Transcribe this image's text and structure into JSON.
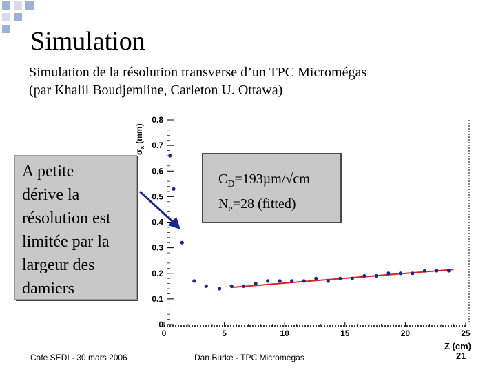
{
  "slide": {
    "title": "Simulation",
    "subtitle_line1": "Simulation de la résolution transverse d’un TPC Micromégas",
    "subtitle_line2": "(par Khalil Boudjemline, Carleton U. Ottawa)",
    "note_lines": [
      "A petite",
      "dérive la",
      "résolution est",
      "limitée par la",
      "largeur des",
      "damiers"
    ],
    "fit": {
      "cd_base": "C",
      "cd_sub": "D",
      "cd_value": "=193µm/√cm",
      "ne_base": "N",
      "ne_sub": "e",
      "ne_value": "=28 (fitted)"
    },
    "footer_left": "Cafe SEDI - 30 mars 2006",
    "footer_center": "Dan Burke - TPC Micromegas",
    "page_number": "21"
  },
  "colors": {
    "points": "#1a2a8c",
    "fit_line": "#dd2222",
    "arrow": "#1a2a8c",
    "box_fill": "#c8c8c8",
    "deco_square": "#9fb0d6"
  },
  "chart_data": {
    "type": "scatter",
    "xlabel": "Z (cm)",
    "ylabel_base": "σ",
    "ylabel_sub": "x",
    "ylabel_unit": "(mm)",
    "xlim": [
      0,
      25
    ],
    "ylim": [
      0,
      0.8
    ],
    "xticks": [
      "0",
      "5",
      "10",
      "15",
      "20",
      "25"
    ],
    "yticks": [
      "0",
      "0.1",
      "0.2",
      "0.3",
      "0.4",
      "0.5",
      "0.6",
      "0.7",
      "0.8"
    ],
    "grid": false,
    "series": [
      {
        "points": [
          [
            0.5,
            0.66
          ],
          [
            0.8,
            0.53
          ],
          [
            1.5,
            0.32
          ],
          [
            2.5,
            0.17
          ],
          [
            3.5,
            0.15
          ],
          [
            4.6,
            0.14
          ],
          [
            5.6,
            0.15
          ],
          [
            6.6,
            0.15
          ],
          [
            7.6,
            0.16
          ],
          [
            8.6,
            0.17
          ],
          [
            9.6,
            0.17
          ],
          [
            10.6,
            0.17
          ],
          [
            11.6,
            0.17
          ],
          [
            12.6,
            0.18
          ],
          [
            13.6,
            0.17
          ],
          [
            14.6,
            0.18
          ],
          [
            15.6,
            0.18
          ],
          [
            16.6,
            0.19
          ],
          [
            17.6,
            0.19
          ],
          [
            18.6,
            0.2
          ],
          [
            19.6,
            0.2
          ],
          [
            20.6,
            0.2
          ],
          [
            21.6,
            0.21
          ],
          [
            22.6,
            0.21
          ],
          [
            23.6,
            0.21
          ]
        ]
      }
    ],
    "fit_line": [
      [
        5.6,
        0.145
      ],
      [
        24.0,
        0.215
      ]
    ]
  }
}
